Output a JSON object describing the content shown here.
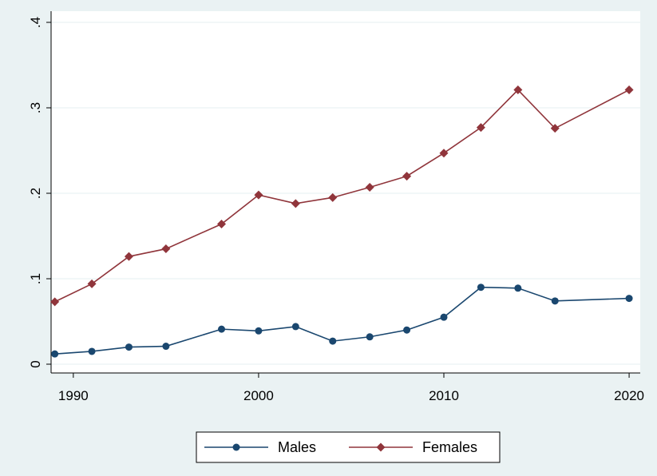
{
  "chart_data": {
    "type": "line",
    "title": "",
    "xlabel": "",
    "ylabel": "",
    "xlim": [
      1988.8,
      2020.6
    ],
    "ylim": [
      0,
      0.4
    ],
    "x_ticks": [
      1990,
      2000,
      2010,
      2020
    ],
    "x_tick_labels": [
      "1990",
      "2000",
      "2010",
      "2020"
    ],
    "y_ticks": [
      0,
      0.1,
      0.2,
      0.3,
      0.4
    ],
    "y_tick_labels": [
      "0",
      ".1",
      ".2",
      ".3",
      ".4"
    ],
    "grid": "horizontal",
    "legend_position": "bottom",
    "series": [
      {
        "name": "Males",
        "color": "#1a476f",
        "marker": "circle",
        "x": [
          1989,
          1991,
          1993,
          1995,
          1998,
          2000,
          2002,
          2004,
          2006,
          2008,
          2010,
          2012,
          2014,
          2016,
          2020
        ],
        "values": [
          0.012,
          0.015,
          0.02,
          0.021,
          0.041,
          0.039,
          0.044,
          0.027,
          0.032,
          0.04,
          0.055,
          0.09,
          0.089,
          0.074,
          0.077
        ]
      },
      {
        "name": "Females",
        "color": "#90353b",
        "marker": "diamond",
        "x": [
          1989,
          1991,
          1993,
          1995,
          1998,
          2000,
          2002,
          2004,
          2006,
          2008,
          2010,
          2012,
          2014,
          2016,
          2020
        ],
        "values": [
          0.073,
          0.094,
          0.126,
          0.135,
          0.164,
          0.198,
          0.188,
          0.195,
          0.207,
          0.22,
          0.247,
          0.277,
          0.321,
          0.276,
          0.321
        ]
      }
    ]
  }
}
